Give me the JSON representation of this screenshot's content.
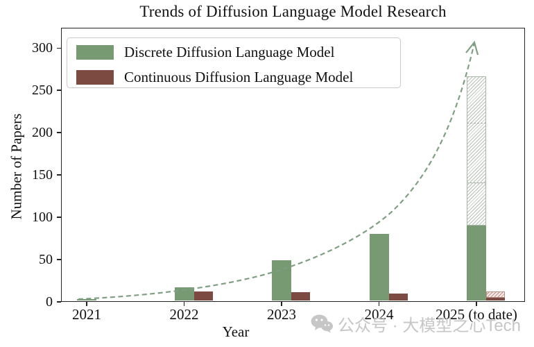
{
  "title": "Trends of Diffusion Language Model Research",
  "watermark": {
    "icon": "wechat-icon",
    "text": "公众号 · 大模型之心Tech"
  },
  "chart_data": {
    "type": "bar",
    "title": "Trends of Diffusion Language Model Research",
    "xlabel": "Year",
    "ylabel": "Number of Papers",
    "categories": [
      "2021",
      "2022",
      "2023",
      "2024",
      "2025 (to date)"
    ],
    "yticks": [
      0,
      50,
      100,
      150,
      200,
      250,
      300
    ],
    "ylim": [
      0,
      324
    ],
    "grid": false,
    "legend_position": "upper left",
    "series": [
      {
        "name": "Discrete Diffusion Language Model",
        "color": "#779a72",
        "values": [
          2,
          16,
          48,
          79,
          89
        ],
        "projected_totals": [
          null,
          null,
          null,
          null,
          265
        ]
      },
      {
        "name": "Continuous Diffusion Language Model",
        "color": "#7c4a41",
        "values": [
          0,
          11,
          10,
          9,
          4
        ],
        "projected_totals": [
          null,
          null,
          null,
          null,
          11
        ]
      }
    ],
    "projection_segment_lines": [
      140,
      210
    ],
    "annotation": {
      "type": "dashed-exponential-growth-arrow",
      "color": "#7f9f82",
      "from_category": "2021",
      "to_value_approx": 310
    }
  }
}
